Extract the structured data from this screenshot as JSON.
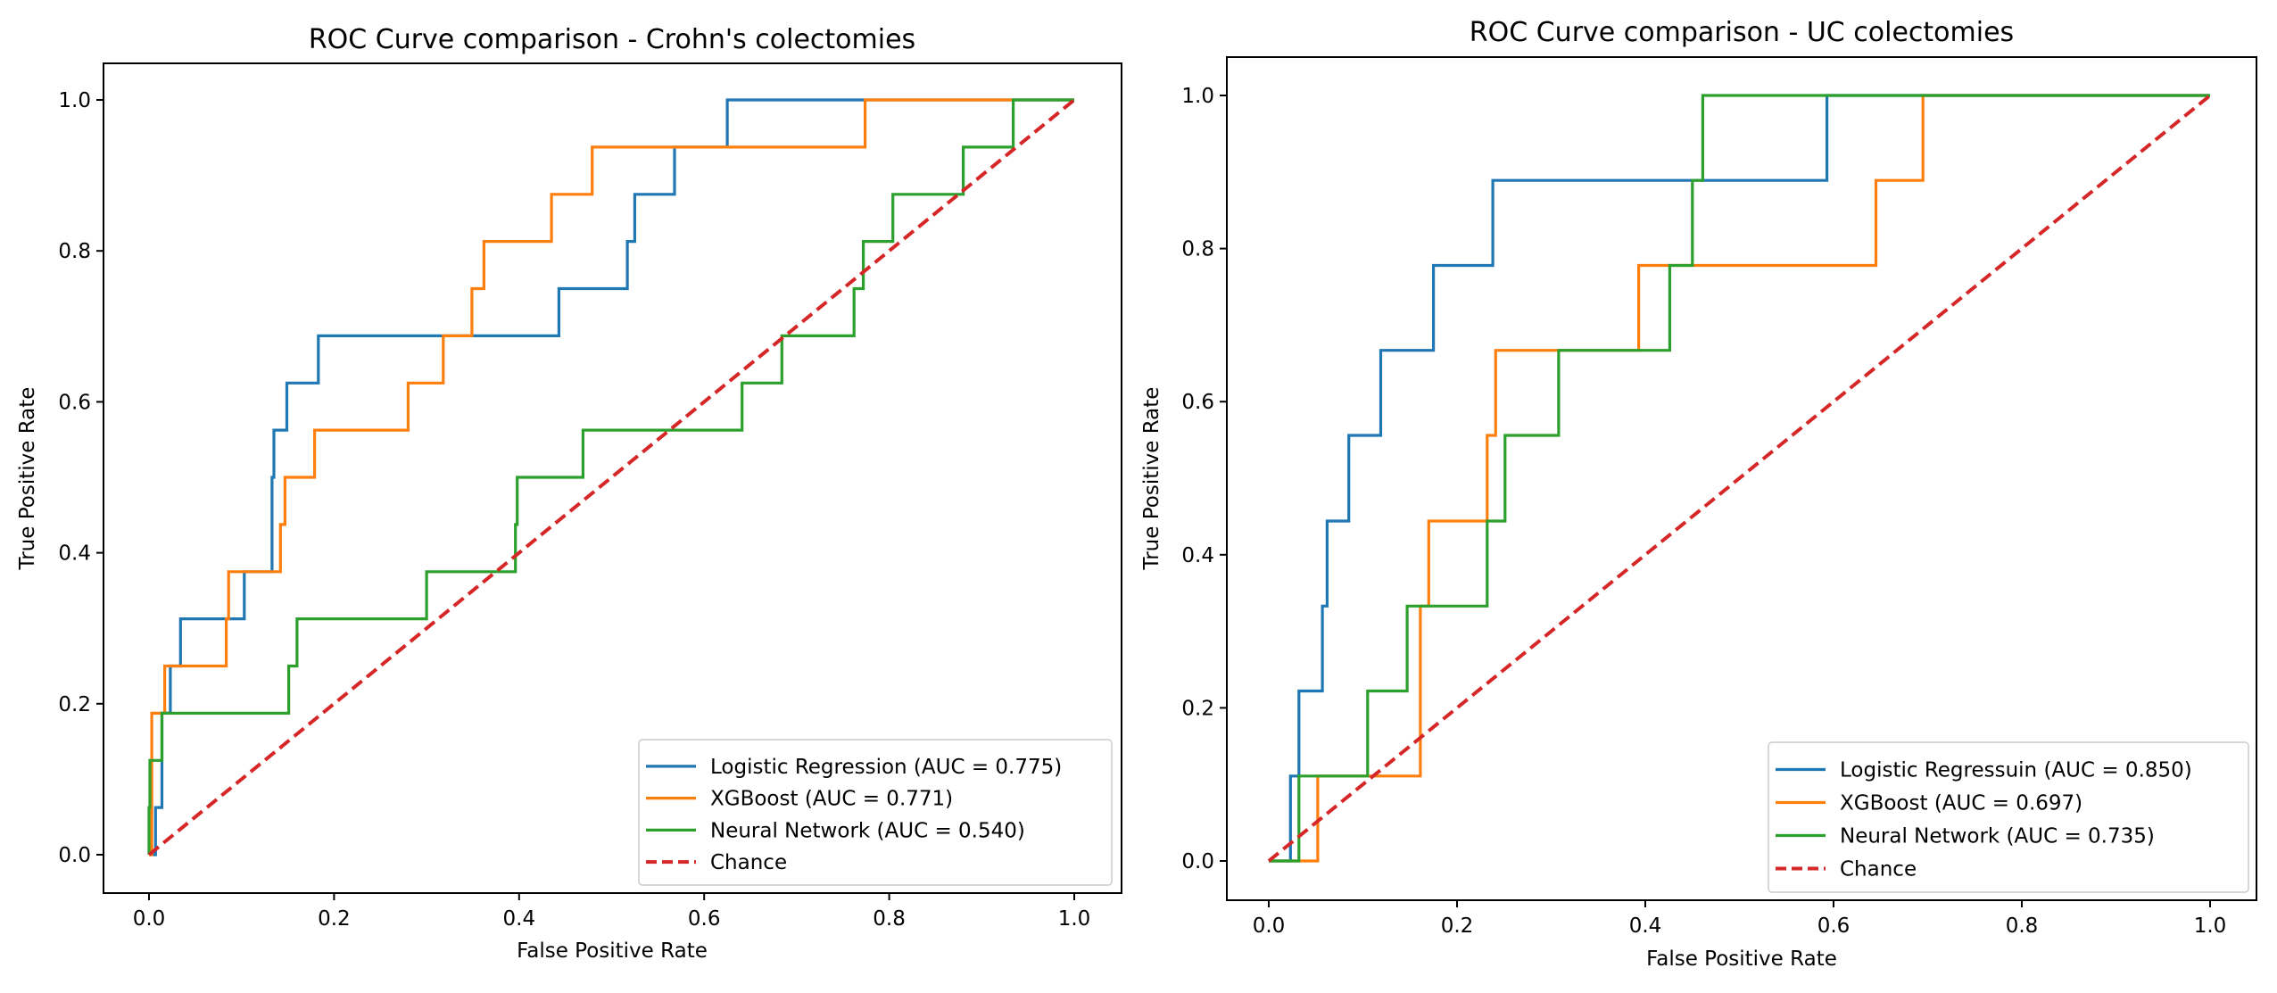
{
  "chart_data": [
    {
      "type": "line",
      "title": "ROC Curve comparison - Crohn's colectomies",
      "xlabel": "False Positive Rate",
      "ylabel": "True Positive Rate",
      "xlim": [
        -0.05,
        1.05
      ],
      "ylim": [
        -0.05,
        1.05
      ],
      "xticks": [
        0.0,
        0.2,
        0.4,
        0.6,
        0.8,
        1.0
      ],
      "yticks": [
        0.0,
        0.2,
        0.4,
        0.6,
        0.8,
        1.0
      ],
      "xtick_labels": [
        "0.0",
        "0.2",
        "0.4",
        "0.6",
        "0.8",
        "1.0"
      ],
      "ytick_labels": [
        "0.0",
        "0.2",
        "0.4",
        "0.6",
        "0.8",
        "1.0"
      ],
      "grid": false,
      "legend_position": "lower-right",
      "series": [
        {
          "name": "Logistic Regression (AUC = 0.775)",
          "color": "#1f77b4",
          "style": "solid",
          "step": true,
          "fpr": [
            0.0,
            0.007,
            0.007,
            0.014,
            0.014,
            0.023,
            0.023,
            0.034,
            0.034,
            0.103,
            0.103,
            0.133,
            0.133,
            0.135,
            0.135,
            0.149,
            0.149,
            0.183,
            0.183,
            0.443,
            0.443,
            0.517,
            0.517,
            0.525,
            0.525,
            0.568,
            0.568,
            0.625,
            0.625,
            1.0
          ],
          "tpr": [
            0.0,
            0.0,
            0.0625,
            0.0625,
            0.1875,
            0.1875,
            0.25,
            0.25,
            0.3125,
            0.3125,
            0.375,
            0.375,
            0.5,
            0.5,
            0.5625,
            0.5625,
            0.625,
            0.625,
            0.6875,
            0.6875,
            0.75,
            0.75,
            0.8125,
            0.8125,
            0.875,
            0.875,
            0.9375,
            0.9375,
            1.0,
            1.0
          ]
        },
        {
          "name": "XGBoost (AUC = 0.771)",
          "color": "#ff7f0e",
          "style": "solid",
          "step": true,
          "fpr": [
            0.0,
            0.003,
            0.003,
            0.017,
            0.017,
            0.0835,
            0.0835,
            0.086,
            0.086,
            0.142,
            0.142,
            0.147,
            0.147,
            0.179,
            0.179,
            0.28,
            0.28,
            0.318,
            0.318,
            0.349,
            0.349,
            0.362,
            0.362,
            0.435,
            0.435,
            0.479,
            0.479,
            0.774,
            0.774,
            1.0
          ],
          "tpr": [
            0.0,
            0.0,
            0.1875,
            0.1875,
            0.25,
            0.25,
            0.3125,
            0.3125,
            0.375,
            0.375,
            0.4375,
            0.4375,
            0.5,
            0.5,
            0.5625,
            0.5625,
            0.625,
            0.625,
            0.6875,
            0.6875,
            0.75,
            0.75,
            0.8125,
            0.8125,
            0.875,
            0.875,
            0.9375,
            0.9375,
            1.0,
            1.0
          ]
        },
        {
          "name": "Neural Network (AUC = 0.540)",
          "color": "#2ca02c",
          "style": "solid",
          "step": true,
          "fpr": [
            0.0,
            0.0,
            0.001,
            0.001,
            0.014,
            0.014,
            0.151,
            0.151,
            0.16,
            0.16,
            0.3,
            0.3,
            0.396,
            0.396,
            0.398,
            0.398,
            0.469,
            0.469,
            0.641,
            0.641,
            0.684,
            0.684,
            0.762,
            0.762,
            0.772,
            0.772,
            0.804,
            0.804,
            0.88,
            0.88,
            0.934,
            0.934,
            1.0
          ],
          "tpr": [
            0.0,
            0.0625,
            0.0625,
            0.125,
            0.125,
            0.1875,
            0.1875,
            0.25,
            0.25,
            0.3125,
            0.3125,
            0.375,
            0.375,
            0.4375,
            0.4375,
            0.5,
            0.5,
            0.5625,
            0.5625,
            0.625,
            0.625,
            0.6875,
            0.6875,
            0.75,
            0.75,
            0.8125,
            0.8125,
            0.875,
            0.875,
            0.9375,
            0.9375,
            1.0,
            1.0
          ]
        },
        {
          "name": "Chance",
          "color": "#d62728",
          "style": "dashed",
          "step": false,
          "fpr": [
            0.0,
            1.0
          ],
          "tpr": [
            0.0,
            1.0
          ]
        }
      ]
    },
    {
      "type": "line",
      "title": "ROC Curve comparison - UC colectomies",
      "xlabel": "False Positive Rate",
      "ylabel": "True Positive Rate",
      "xlim": [
        -0.05,
        1.05
      ],
      "ylim": [
        -0.05,
        1.05
      ],
      "xticks": [
        0.0,
        0.2,
        0.4,
        0.6,
        0.8,
        1.0
      ],
      "yticks": [
        0.0,
        0.2,
        0.4,
        0.6,
        0.8,
        1.0
      ],
      "xtick_labels": [
        "0.0",
        "0.2",
        "0.4",
        "0.6",
        "0.8",
        "1.0"
      ],
      "ytick_labels": [
        "0.0",
        "0.2",
        "0.4",
        "0.6",
        "0.8",
        "1.0"
      ],
      "grid": false,
      "legend_position": "lower-right",
      "series": [
        {
          "name": "Logistic Regressuin (AUC = 0.850)",
          "color": "#1f77b4",
          "style": "solid",
          "step": true,
          "fpr": [
            0.0,
            0.023,
            0.023,
            0.032,
            0.032,
            0.057,
            0.057,
            0.062,
            0.062,
            0.085,
            0.085,
            0.119,
            0.119,
            0.175,
            0.175,
            0.238,
            0.238,
            0.593,
            0.593,
            1.0
          ],
          "tpr": [
            0.0,
            0.0,
            0.111,
            0.111,
            0.222,
            0.222,
            0.333,
            0.333,
            0.444,
            0.444,
            0.556,
            0.556,
            0.667,
            0.667,
            0.778,
            0.778,
            0.889,
            0.889,
            1.0,
            1.0
          ]
        },
        {
          "name": "XGBoost (AUC = 0.697)",
          "color": "#ff7f0e",
          "style": "solid",
          "step": true,
          "fpr": [
            0.0,
            0.052,
            0.052,
            0.161,
            0.161,
            0.17,
            0.17,
            0.232,
            0.232,
            0.241,
            0.241,
            0.393,
            0.393,
            0.645,
            0.645,
            0.695,
            0.695,
            1.0
          ],
          "tpr": [
            0.0,
            0.0,
            0.111,
            0.111,
            0.333,
            0.333,
            0.444,
            0.444,
            0.556,
            0.556,
            0.667,
            0.667,
            0.778,
            0.778,
            0.889,
            0.889,
            1.0,
            1.0
          ]
        },
        {
          "name": "Neural Network (AUC = 0.735)",
          "color": "#2ca02c",
          "style": "solid",
          "step": true,
          "fpr": [
            0.0,
            0.032,
            0.032,
            0.105,
            0.105,
            0.147,
            0.147,
            0.232,
            0.232,
            0.251,
            0.251,
            0.308,
            0.308,
            0.426,
            0.426,
            0.45,
            0.45,
            0.461,
            0.461,
            1.0
          ],
          "tpr": [
            0.0,
            0.0,
            0.111,
            0.111,
            0.222,
            0.222,
            0.333,
            0.333,
            0.444,
            0.444,
            0.556,
            0.556,
            0.667,
            0.667,
            0.778,
            0.778,
            0.889,
            0.889,
            1.0,
            1.0
          ]
        },
        {
          "name": "Chance",
          "color": "#d62728",
          "style": "dashed",
          "step": false,
          "fpr": [
            0.0,
            1.0
          ],
          "tpr": [
            0.0,
            1.0
          ]
        }
      ]
    }
  ]
}
